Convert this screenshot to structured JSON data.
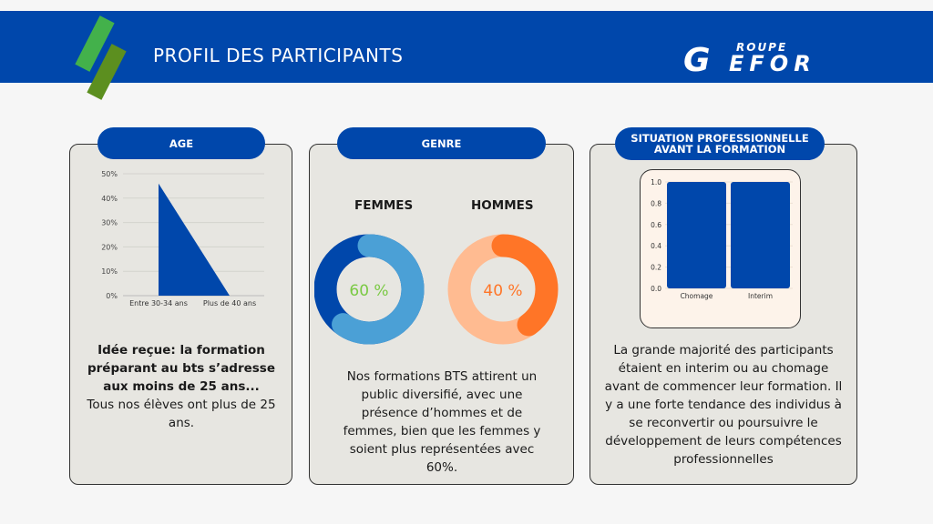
{
  "header": {
    "title": "PROFIL DES PARTICIPANTS",
    "logo_text": "GROUPE GEFOR"
  },
  "colors": {
    "brand_blue": "#0047ab",
    "green": "#43b14b",
    "dark_green": "#5c8f1f",
    "light_blue": "#4ba0d6",
    "orange": "#ff7527",
    "light_orange": "#ffbb91",
    "bar_panel_bg": "#fdf3ea"
  },
  "age": {
    "pill": "AGE",
    "bold_text": "Idée reçue: la formation préparant au bts s’adresse aux moins de 25 ans...",
    "text": "Tous nos élèves ont plus de 25 ans."
  },
  "genre": {
    "pill": "GENRE",
    "femmes_label": "FEMMES",
    "femmes_value": "60 %",
    "femmes_pct": 60,
    "hommes_label": "HOMMES",
    "hommes_value": "40 %",
    "hommes_pct": 40,
    "text": "Nos formations BTS attirent un public diversifié, avec une présence d’hommes et de femmes, bien que les femmes y soient plus représentées avec 60%."
  },
  "situation": {
    "pill": "SITUATION PROFESSIONNELLE AVANT LA FORMATION",
    "text": "La grande majorité des participants étaient en interim ou au chomage avant de commencer leur formation. Il y a une forte tendance des individus à se reconvertir ou poursuivre le développement de leurs compétences professionnelles"
  },
  "chart_data": [
    {
      "type": "area",
      "categories": [
        "Entre 30-34 ans",
        "Plus de 40 ans"
      ],
      "values": [
        46,
        0
      ],
      "ylim": [
        0,
        50
      ],
      "yticks": [
        "0%",
        "10%",
        "20%",
        "30%",
        "40%",
        "50%"
      ],
      "grid": true
    },
    {
      "type": "bar",
      "categories": [
        "Chomage",
        "Interim"
      ],
      "values": [
        1.0,
        1.0
      ],
      "ylim": [
        0,
        1.0
      ],
      "yticks": [
        "0.0",
        "0.2",
        "0.4",
        "0.6",
        "0.8",
        "1.0"
      ],
      "grid": true
    }
  ]
}
